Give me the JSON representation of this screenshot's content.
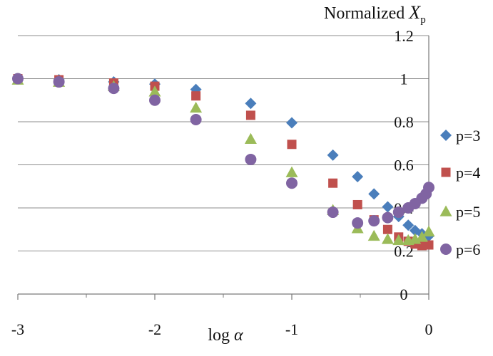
{
  "chart_data": {
    "type": "scatter",
    "title": "",
    "xlabel": "log α",
    "ylabel": "Normalized Xp",
    "xlim": [
      -3,
      0
    ],
    "ylim": [
      0,
      1.2
    ],
    "x_ticks": [
      "-3",
      "-2",
      "-1",
      "0"
    ],
    "y_ticks": [
      "0",
      "0.2",
      "0.4",
      "0.6",
      "0.8",
      "1",
      "1.2"
    ],
    "grid": "horizontal",
    "legend_position": "right",
    "series": [
      {
        "name": "p=3",
        "color": "#4a7ebb",
        "marker": "diamond",
        "points": [
          [
            -3,
            1.0
          ],
          [
            -2.7,
            0.995
          ],
          [
            -2.3,
            0.985
          ],
          [
            -2.0,
            0.975
          ],
          [
            -1.7,
            0.95
          ],
          [
            -1.3,
            0.885
          ],
          [
            -1.0,
            0.795
          ],
          [
            -0.7,
            0.645
          ],
          [
            -0.52,
            0.545
          ],
          [
            -0.4,
            0.465
          ],
          [
            -0.3,
            0.405
          ],
          [
            -0.22,
            0.36
          ],
          [
            -0.15,
            0.32
          ],
          [
            -0.1,
            0.295
          ],
          [
            -0.05,
            0.28
          ],
          [
            0.0,
            0.27
          ]
        ]
      },
      {
        "name": "p=4",
        "color": "#c0504d",
        "marker": "square",
        "points": [
          [
            -3,
            1.0
          ],
          [
            -2.7,
            0.995
          ],
          [
            -2.3,
            0.98
          ],
          [
            -2.0,
            0.965
          ],
          [
            -1.7,
            0.92
          ],
          [
            -1.3,
            0.83
          ],
          [
            -1.0,
            0.695
          ],
          [
            -0.7,
            0.515
          ],
          [
            -0.52,
            0.415
          ],
          [
            -0.4,
            0.345
          ],
          [
            -0.3,
            0.3
          ],
          [
            -0.22,
            0.265
          ],
          [
            -0.15,
            0.245
          ],
          [
            -0.1,
            0.232
          ],
          [
            -0.05,
            0.225
          ],
          [
            0.0,
            0.228
          ]
        ]
      },
      {
        "name": "p=5",
        "color": "#9bbb59",
        "marker": "triangle",
        "points": [
          [
            -3,
            0.995
          ],
          [
            -2.7,
            0.985
          ],
          [
            -2.3,
            0.965
          ],
          [
            -2.0,
            0.94
          ],
          [
            -1.7,
            0.865
          ],
          [
            -1.3,
            0.72
          ],
          [
            -1.0,
            0.565
          ],
          [
            -0.7,
            0.39
          ],
          [
            -0.52,
            0.305
          ],
          [
            -0.4,
            0.27
          ],
          [
            -0.3,
            0.255
          ],
          [
            -0.22,
            0.25
          ],
          [
            -0.15,
            0.25
          ],
          [
            -0.1,
            0.255
          ],
          [
            -0.05,
            0.265
          ],
          [
            0.0,
            0.29
          ]
        ]
      },
      {
        "name": "p=6",
        "color": "#8064a2",
        "marker": "circle",
        "points": [
          [
            -3,
            1.0
          ],
          [
            -2.7,
            0.985
          ],
          [
            -2.3,
            0.955
          ],
          [
            -2.0,
            0.9
          ],
          [
            -1.7,
            0.81
          ],
          [
            -1.3,
            0.625
          ],
          [
            -1.0,
            0.515
          ],
          [
            -0.7,
            0.38
          ],
          [
            -0.52,
            0.33
          ],
          [
            -0.4,
            0.34
          ],
          [
            -0.3,
            0.355
          ],
          [
            -0.22,
            0.38
          ],
          [
            -0.15,
            0.4
          ],
          [
            -0.1,
            0.42
          ],
          [
            -0.05,
            0.445
          ],
          [
            -0.02,
            0.465
          ],
          [
            0.0,
            0.495
          ]
        ]
      }
    ]
  }
}
